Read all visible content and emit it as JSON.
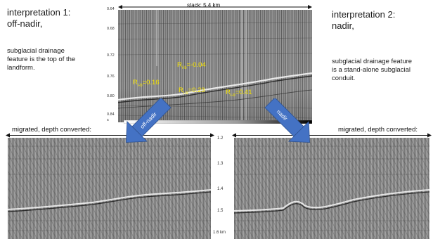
{
  "left": {
    "heading_line1": "interpretation 1:",
    "heading_line2": "off-nadir,",
    "body_line1": "subglacial drainage",
    "body_line2": "feature is the top of the",
    "body_line3": "landform."
  },
  "right": {
    "heading_line1": "interpretation 2:",
    "heading_line2": "nadir,",
    "body_line1": "subglacial drainage feature",
    "body_line2": "is a stand-alone subglacial",
    "body_line3": "conduit."
  },
  "stack": {
    "title": "stack: 5.4 km",
    "time_ticks": [
      "0.64",
      "0.68",
      "0.72",
      "0.76",
      "0.80",
      "0.84"
    ],
    "time_unit": "s",
    "reflectivity": [
      {
        "prefix": "R",
        "sub": "i-b",
        "value": "=-0.04"
      },
      {
        "prefix": "R",
        "sub": "i-b",
        "value": "=0.41"
      },
      {
        "prefix": "R",
        "sub": "i-b",
        "value": "=0.16"
      },
      {
        "prefix": "R",
        "sub": "i-b",
        "value": "=0.23"
      }
    ]
  },
  "migrated": {
    "left_title": "migrated, depth converted:",
    "right_title": "migrated, depth converted:",
    "depth_ticks": [
      "1.2",
      "1.3",
      "1.4",
      "1.5",
      "1.6 km"
    ]
  },
  "arrows": {
    "left_label": "off-nadir",
    "right_label": "nadir",
    "color": "#4472c4"
  }
}
